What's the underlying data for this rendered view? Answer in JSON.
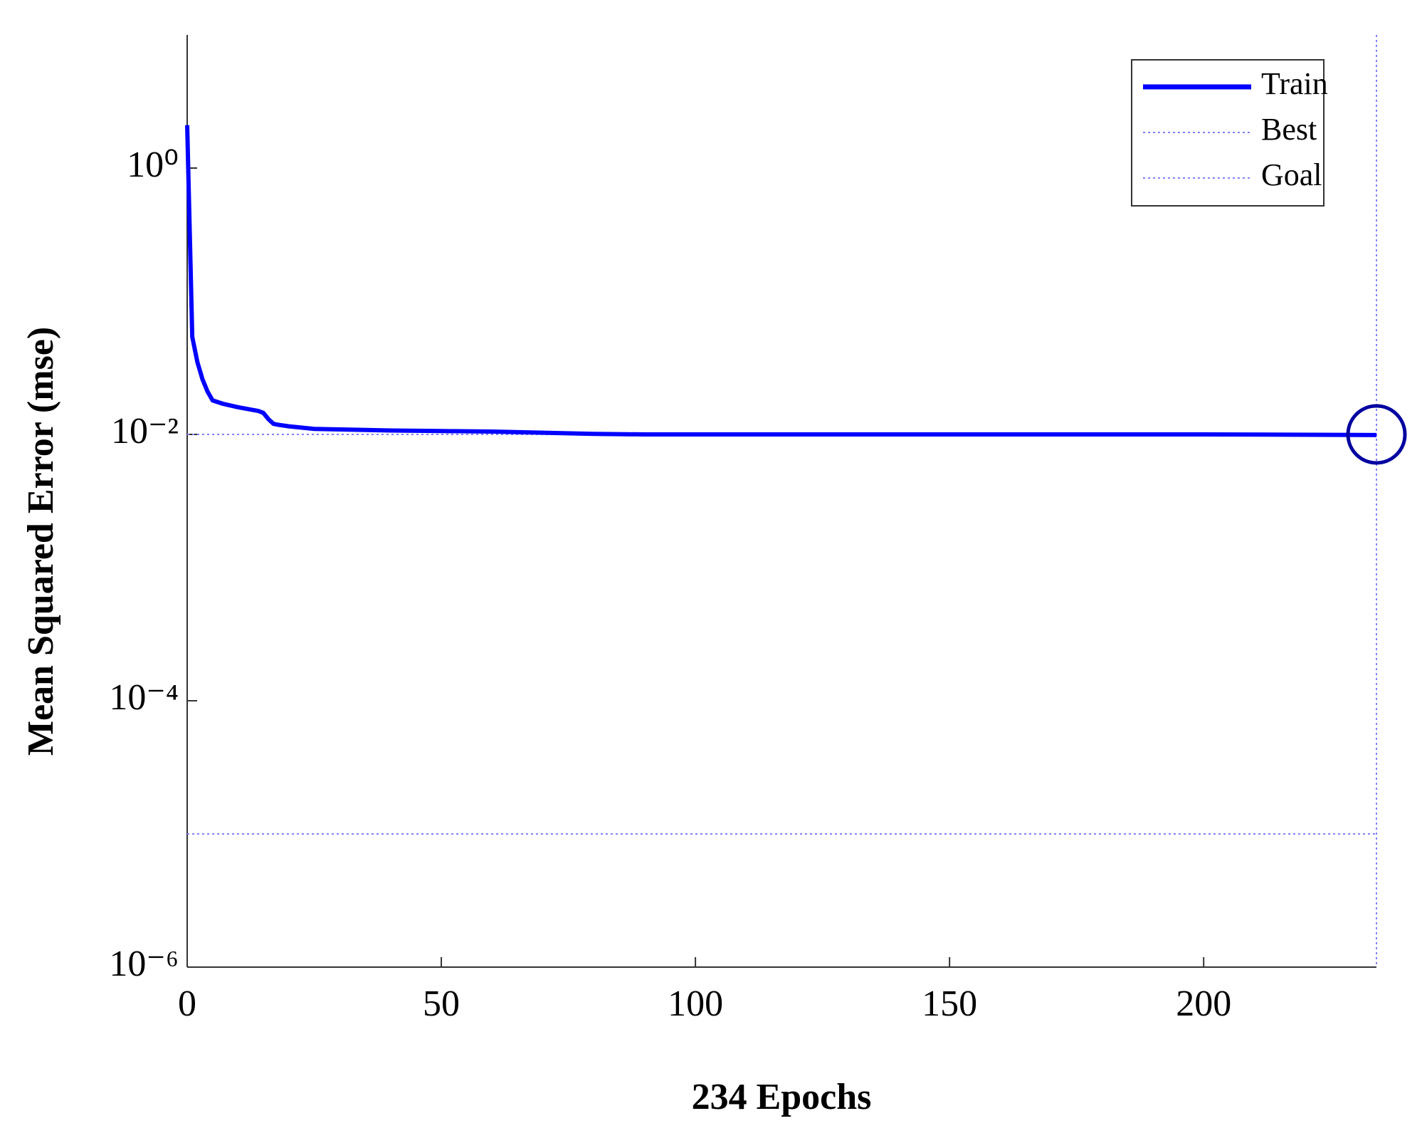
{
  "chart_data": {
    "type": "line",
    "x_label": "234 Epochs",
    "y_label": "Mean Squared Error (mse)",
    "y_scale": "log",
    "x": [
      0,
      1,
      2,
      3,
      4,
      5,
      7,
      10,
      14,
      15,
      16,
      17,
      18,
      20,
      25,
      30,
      40,
      50,
      60,
      70,
      80,
      90,
      100,
      150,
      200,
      234
    ],
    "series": [
      {
        "name": "Train",
        "color": "#0000ff",
        "values": [
          2.1,
          0.054,
          0.035,
          0.026,
          0.021,
          0.018,
          0.017,
          0.016,
          0.015,
          0.0145,
          0.013,
          0.012,
          0.0118,
          0.0115,
          0.011,
          0.0109,
          0.0107,
          0.0106,
          0.0105,
          0.0103,
          0.0101,
          0.01,
          0.01,
          0.01,
          0.01,
          0.0099
        ]
      }
    ],
    "reference_lines": [
      {
        "name": "Best",
        "color": "#8080ff",
        "x": 234,
        "y": 0.01
      },
      {
        "name": "Goal",
        "color": "#8080ff",
        "y": 1e-05
      }
    ],
    "xlim": [
      0,
      234
    ],
    "ylim": [
      1e-06,
      10
    ],
    "xticks": [
      0,
      50,
      100,
      150,
      200
    ],
    "yticks": [
      {
        "value": 1e-06,
        "label": "10⁻⁶"
      },
      {
        "value": 0.0001,
        "label": "10⁻⁴"
      },
      {
        "value": 0.01,
        "label": "10⁻²"
      },
      {
        "value": 1,
        "label": "10⁰"
      }
    ],
    "legend": "upper right"
  }
}
